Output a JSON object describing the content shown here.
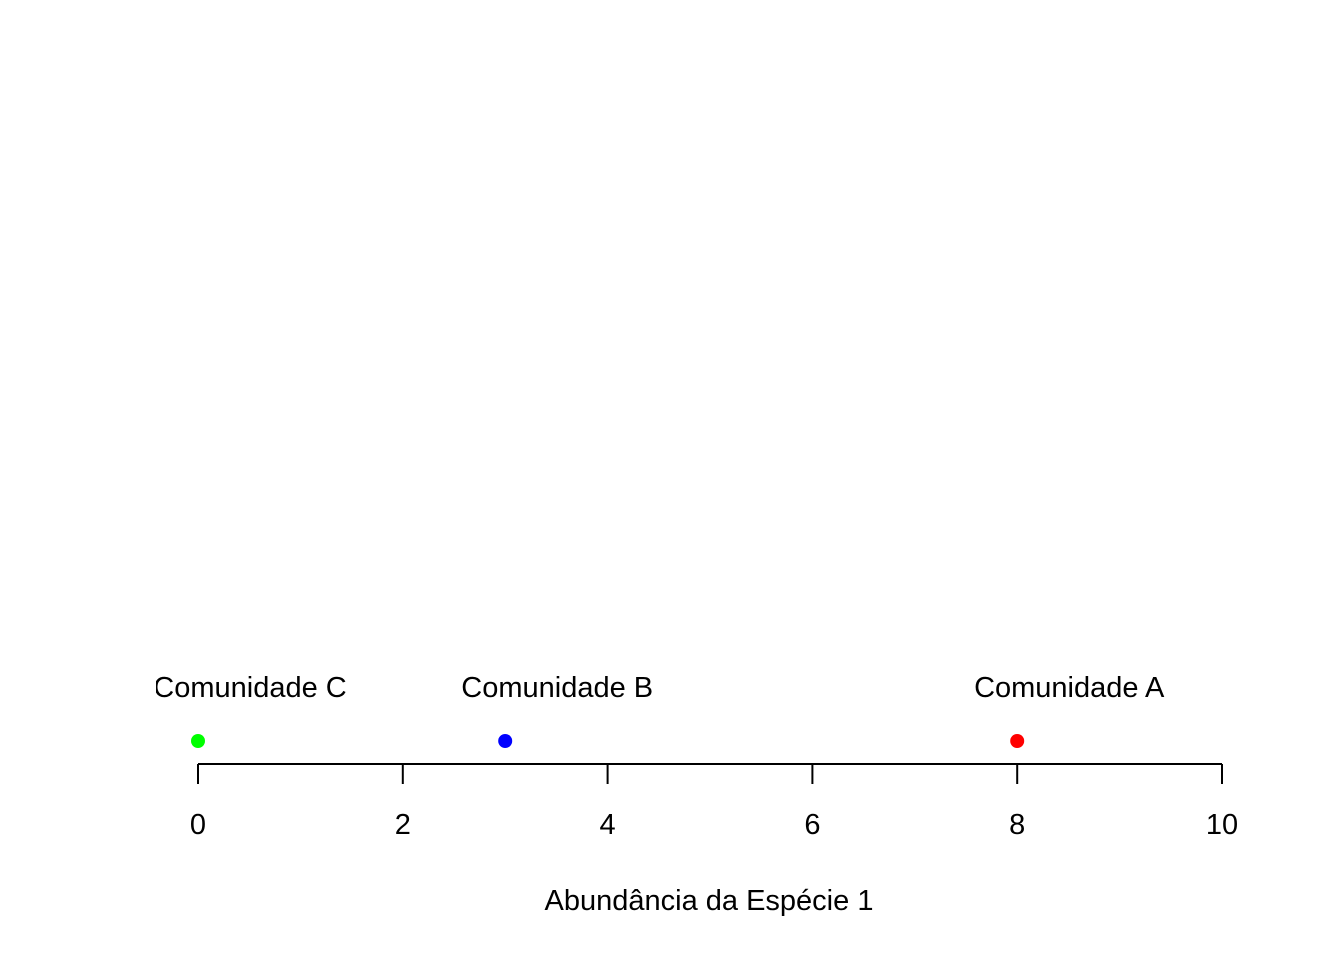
{
  "chart_data": {
    "type": "scatter",
    "title": "",
    "xlabel": "Abundância da Espécie 1",
    "ylabel": "",
    "xlim": [
      0,
      10
    ],
    "x_ticks": [
      0,
      2,
      4,
      6,
      8,
      10
    ],
    "grid": false,
    "points": [
      {
        "label": "Comunidade A",
        "x": 8,
        "color": "#ff0000"
      },
      {
        "label": "Comunidade B",
        "x": 3,
        "color": "#0000ff"
      },
      {
        "label": "Comunidade C",
        "x": 0,
        "color": "#00ff00"
      }
    ]
  }
}
